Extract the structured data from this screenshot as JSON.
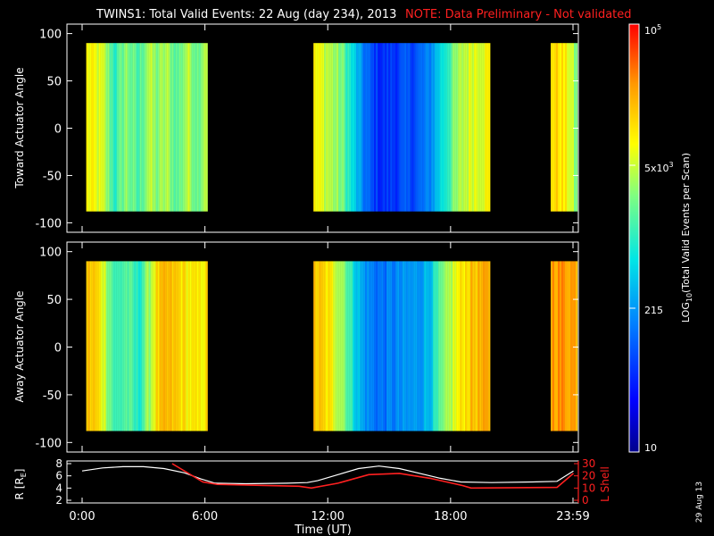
{
  "chart_data": [
    {
      "type": "heatmap",
      "title": "TWINS1: Total Valid Events: 22 Aug (day 234), 2013",
      "note": "NOTE: Data Preliminary - Not validated",
      "ylabel": "Toward Actuator Angle",
      "ylim": [
        -110,
        110
      ],
      "yticks": [
        "100",
        "50",
        "0",
        "-50",
        "-100"
      ],
      "xlim": [
        0,
        24
      ],
      "data_ranges": [
        [
          0.2,
          6.05
        ],
        [
          11.3,
          19.9
        ],
        [
          25.8,
          27.0
        ]
      ],
      "ylim_data": [
        -88,
        90
      ],
      "profile": {
        "x": [
          0.2,
          0.6,
          1.0,
          1.6,
          2.1,
          2.7,
          3.2,
          3.6,
          4.1,
          4.6,
          5.1,
          5.6,
          6.0,
          11.3,
          12.0,
          12.7,
          13.1,
          13.6,
          14.1,
          14.6,
          15.1,
          15.7,
          16.3,
          16.9,
          17.5,
          18.1,
          18.6,
          19.0,
          19.9,
          25.8,
          26.2,
          26.6,
          27.0
        ],
        "value": [
          0.72,
          0.7,
          0.66,
          0.5,
          0.62,
          0.52,
          0.66,
          0.6,
          0.64,
          0.55,
          0.66,
          0.58,
          0.68,
          0.72,
          0.66,
          0.58,
          0.46,
          0.32,
          0.22,
          0.18,
          0.2,
          0.22,
          0.24,
          0.3,
          0.45,
          0.58,
          0.66,
          0.7,
          0.72,
          0.78,
          0.76,
          0.7,
          0.55
        ]
      }
    },
    {
      "type": "heatmap",
      "ylabel": "Away Actuator Angle",
      "ylim": [
        -110,
        110
      ],
      "yticks": [
        "100",
        "50",
        "0",
        "-50",
        "-100"
      ],
      "xlim": [
        0,
        24
      ],
      "data_ranges": [
        [
          0.2,
          6.05
        ],
        [
          11.3,
          19.9
        ],
        [
          25.8,
          27.0
        ]
      ],
      "ylim_data": [
        -88,
        90
      ],
      "profile": {
        "x": [
          0.2,
          0.6,
          1.0,
          1.6,
          2.1,
          2.7,
          3.2,
          3.6,
          4.1,
          4.6,
          5.1,
          5.6,
          6.0,
          11.3,
          12.0,
          12.7,
          13.1,
          13.6,
          14.1,
          14.6,
          15.1,
          15.7,
          16.3,
          16.9,
          17.5,
          18.1,
          18.6,
          19.0,
          19.9,
          25.8,
          26.2,
          26.6,
          27.0
        ],
        "value": [
          0.8,
          0.78,
          0.7,
          0.5,
          0.56,
          0.48,
          0.62,
          0.76,
          0.8,
          0.78,
          0.74,
          0.72,
          0.76,
          0.8,
          0.74,
          0.64,
          0.5,
          0.36,
          0.3,
          0.28,
          0.3,
          0.32,
          0.34,
          0.4,
          0.55,
          0.68,
          0.76,
          0.8,
          0.82,
          0.86,
          0.86,
          0.86,
          0.84
        ]
      }
    },
    {
      "type": "line",
      "ylabel_left": "R [R",
      "ylabel_left_sub": "E",
      "ylabel_left_close": "]",
      "ylabel_right": "L Shell",
      "ylim_left": [
        2,
        8
      ],
      "ylim_right": [
        0,
        30
      ],
      "yticks_left": [
        "8",
        "6",
        "4",
        "2"
      ],
      "yticks_right": [
        "30",
        "20",
        "10",
        "0"
      ],
      "xlabel": "Time (UT)",
      "xticks": [
        "0:00",
        "6:00",
        "12:00",
        "18:00",
        "23:59"
      ],
      "xtick_values": [
        0,
        6,
        12,
        18,
        23.98
      ],
      "series": [
        {
          "axis": "left",
          "color": "#ffffff",
          "x": [
            0,
            1,
            2,
            3,
            4,
            5,
            5.8,
            6.5,
            8,
            10,
            11,
            11.5,
            12.5,
            13.5,
            14.5,
            15.5,
            16.5,
            17.5,
            18.5,
            20,
            22,
            23.2,
            24
          ],
          "y": [
            6.8,
            7.3,
            7.5,
            7.5,
            7.2,
            6.5,
            5.5,
            4.8,
            4.7,
            4.8,
            4.9,
            5.2,
            6.2,
            7.2,
            7.6,
            7.2,
            6.4,
            5.6,
            5.0,
            4.9,
            5.0,
            5.1,
            6.8
          ]
        },
        {
          "axis": "right",
          "color": "#ff2020",
          "x": [
            4.4,
            5.9,
            6.6,
            10.6,
            11.2,
            12.5,
            14,
            15.5,
            17,
            18.6,
            19,
            23.2,
            24
          ],
          "y": [
            30,
            15,
            13,
            11.5,
            10,
            14,
            21,
            22,
            18,
            12,
            10,
            10.5,
            22
          ]
        }
      ]
    }
  ],
  "colorbar": {
    "title_prefix": "LOG",
    "title_sub": "10",
    "title_rest": "(Total Valid Events per Scan)",
    "top_label": "10",
    "top_label_exp": "5",
    "labels": [
      "5x10",
      "215",
      "10"
    ],
    "mid_exp": "3"
  },
  "footer": {
    "date": "29 Aug 13"
  },
  "colors": {
    "background": "#000000",
    "axis": "#ffffff",
    "note": "#ff2020"
  }
}
